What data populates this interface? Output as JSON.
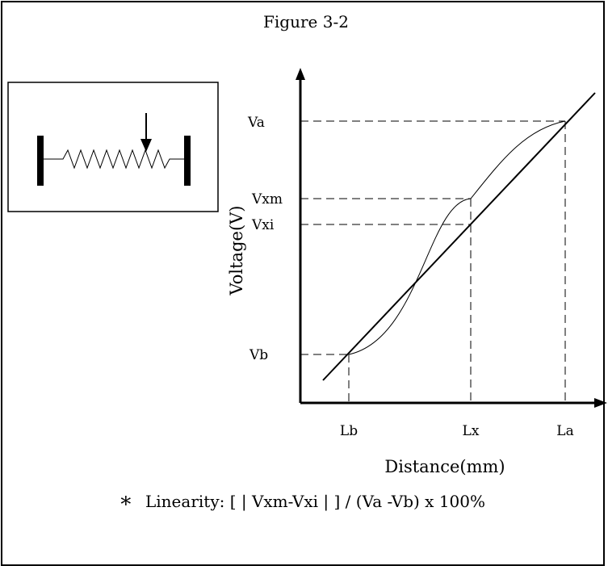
{
  "figure": {
    "title": "Figure 3-2",
    "y_axis_label": "Voltage(V)",
    "x_axis_label": "Distance(mm)",
    "formula_star": "∗",
    "formula": "Linearity: [ | Vxm-Vxi | ] / (Va -Vb) x 100%"
  },
  "y_ticks": {
    "va": "Va",
    "vxm": "Vxm",
    "vxi": "Vxi",
    "vb": "Vb"
  },
  "x_ticks": {
    "lb": "Lb",
    "lx": "Lx",
    "la": "La"
  },
  "inset": {
    "description_icon": "potentiometer-icon"
  }
}
